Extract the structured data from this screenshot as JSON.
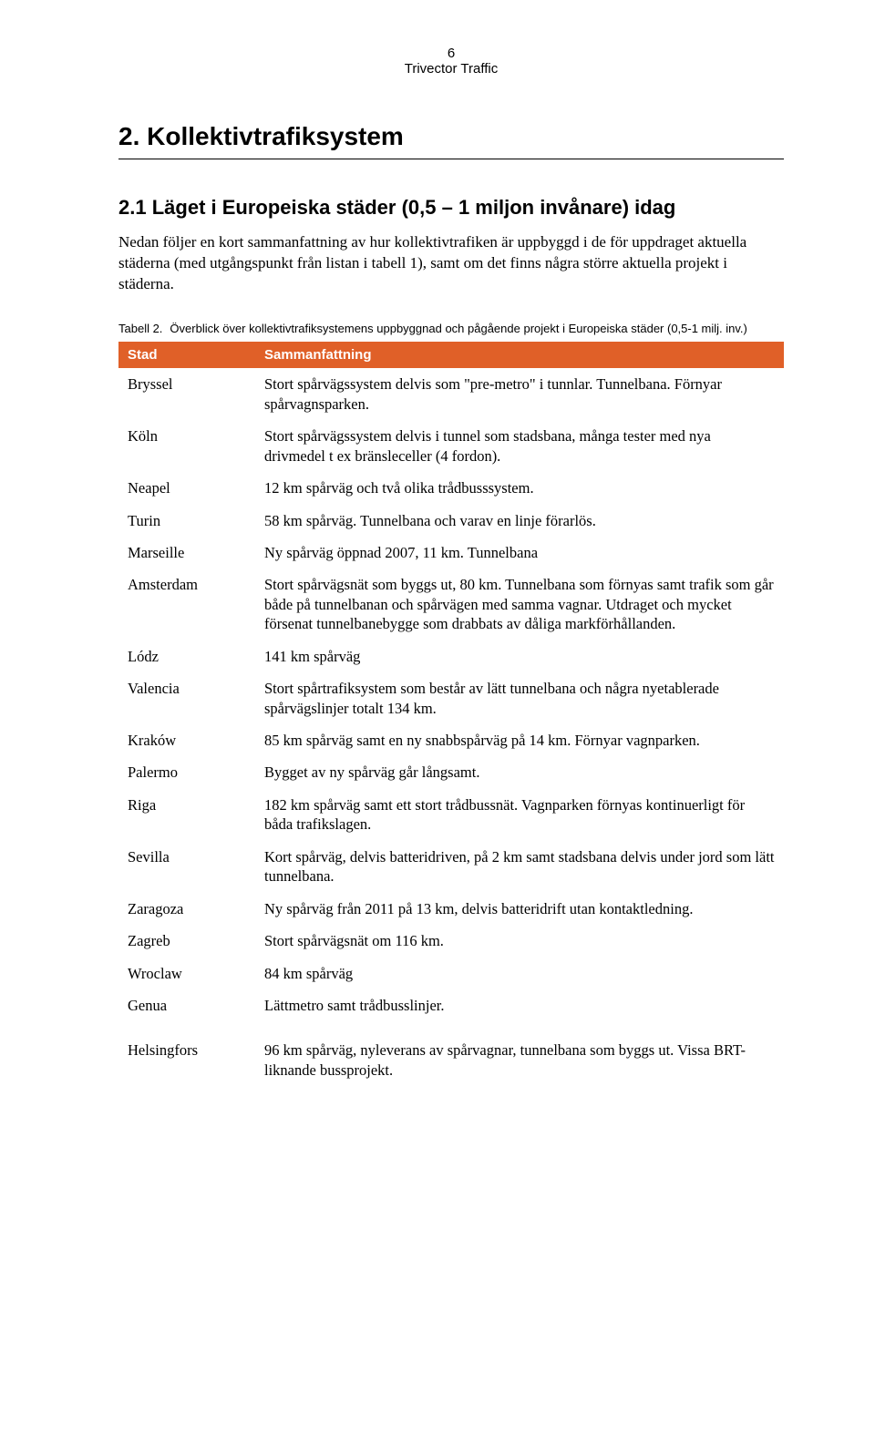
{
  "header": {
    "page_number": "6",
    "company": "Trivector Traffic"
  },
  "chapter": {
    "number": "2.",
    "title": "Kollektivtrafiksystem"
  },
  "section": {
    "number": "2.1",
    "title": "Läget i Europeiska städer (0,5 – 1 miljon invånare) idag"
  },
  "intro_paragraph": "Nedan följer en kort sammanfattning av hur kollektivtrafiken är uppbyggd i de för uppdraget aktuella städerna (med utgångspunkt från listan i tabell 1), samt om det finns några större aktuella projekt i städerna.",
  "table_caption": {
    "label": "Tabell 2.",
    "text": "Överblick över kollektivtrafiksystemens uppbyggnad och pågående projekt i Europeiska städer (0,5-1 milj. inv.)"
  },
  "table": {
    "header_bg": "#e06028",
    "header_fg": "#ffffff",
    "columns": [
      "Stad",
      "Sammanfattning"
    ],
    "rows": [
      {
        "city": "Bryssel",
        "summary": "Stort spårvägssystem delvis som \"pre-metro\" i tunnlar. Tunnelbana. Förnyar spårvagnsparken."
      },
      {
        "city": "Köln",
        "summary": "Stort spårvägssystem delvis i tunnel som stadsbana, många tester med nya drivmedel t ex bränsleceller (4 fordon)."
      },
      {
        "city": "Neapel",
        "summary": "12 km spårväg och två olika trådbusssystem."
      },
      {
        "city": "Turin",
        "summary": "58 km spårväg. Tunnelbana och varav en linje förarlös."
      },
      {
        "city": "Marseille",
        "summary": "Ny spårväg öppnad 2007, 11 km. Tunnelbana"
      },
      {
        "city": "Amsterdam",
        "summary": "Stort spårvägsnät som byggs ut, 80 km. Tunnelbana som förnyas samt trafik som går både på tunnelbanan och spårvägen med samma vagnar. Utdraget och mycket försenat tunnelbanebygge som drabbats av dåliga markförhållanden."
      },
      {
        "city": "Lódz",
        "summary": "141 km spårväg"
      },
      {
        "city": "Valencia",
        "summary": "Stort spårtrafiksystem som består av lätt tunnelbana och några nyetablerade spårvägslinjer totalt 134 km."
      },
      {
        "city": "Kraków",
        "summary": "85 km spårväg samt en ny snabbspårväg på 14 km. Förnyar vagnparken."
      },
      {
        "city": "Palermo",
        "summary": "Bygget av ny spårväg går långsamt."
      },
      {
        "city": "Riga",
        "summary": "182 km spårväg samt ett stort trådbussnät. Vagnparken förnyas kontinuerligt för båda trafikslagen."
      },
      {
        "city": "Sevilla",
        "summary": "Kort spårväg, delvis batteridriven, på 2 km samt stadsbana delvis under jord som lätt tunnelbana."
      },
      {
        "city": "Zaragoza",
        "summary": "Ny spårväg från 2011 på 13 km, delvis batteridrift utan kontaktledning."
      },
      {
        "city": "Zagreb",
        "summary": "Stort spårvägsnät om 116 km."
      },
      {
        "city": "Wroclaw",
        "summary": "84 km spårväg"
      },
      {
        "city": "Genua",
        "summary": "Lättmetro samt trådbusslinjer."
      }
    ],
    "gap_row": {
      "city": "Helsingfors",
      "summary": "96 km spårväg, nyleverans av spårvagnar, tunnelbana som byggs ut. Vissa BRT-liknande bussprojekt."
    }
  }
}
